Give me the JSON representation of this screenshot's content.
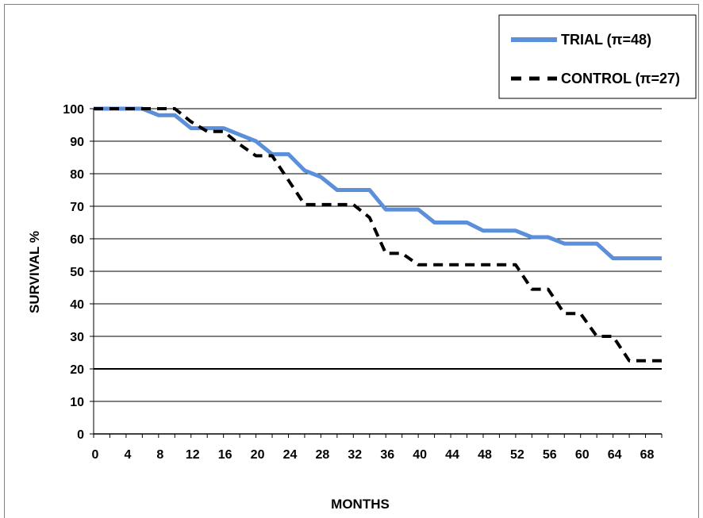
{
  "chart_data": {
    "type": "line",
    "title": "",
    "xlabel": "MONTHS",
    "ylabel": "SURVIVAL  %",
    "xlim": [
      0,
      70
    ],
    "ylim": [
      0,
      100
    ],
    "xticks": [
      0,
      4,
      8,
      12,
      16,
      20,
      24,
      28,
      32,
      36,
      40,
      44,
      48,
      52,
      56,
      60,
      64,
      68
    ],
    "yticks": [
      0,
      10,
      20,
      30,
      40,
      50,
      60,
      70,
      80,
      90,
      100
    ],
    "grid": "horizontal",
    "legend": "top-right",
    "series": [
      {
        "name": "TRIAL (π=48)",
        "color": "#5b8fd9",
        "style": "solid",
        "x": [
          0,
          6,
          8,
          10,
          12,
          16,
          18,
          20,
          22,
          24,
          26,
          28,
          30,
          34,
          36,
          40,
          42,
          46,
          48,
          52,
          54,
          56,
          58,
          62,
          64,
          70
        ],
        "y": [
          100,
          100,
          98,
          98,
          94,
          94,
          92,
          90,
          86,
          86,
          81,
          79,
          75,
          75,
          69,
          69,
          65,
          65,
          62.5,
          62.5,
          60.5,
          60.5,
          58.5,
          58.5,
          54,
          54
        ]
      },
      {
        "name": "CONTROL (π=27)",
        "color": "#000000",
        "style": "dashed",
        "x": [
          0,
          10,
          12,
          14,
          16,
          18,
          20,
          22,
          24,
          26,
          32,
          34,
          36,
          38,
          40,
          52,
          54,
          56,
          58,
          60,
          62,
          64,
          66,
          70
        ],
        "y": [
          100,
          100,
          96,
          93,
          93,
          89,
          85.5,
          85.5,
          78,
          70.5,
          70.5,
          66.5,
          55.5,
          55.5,
          52,
          52,
          44.5,
          44.5,
          37,
          37,
          30,
          30,
          22.5,
          22.5
        ]
      }
    ]
  }
}
